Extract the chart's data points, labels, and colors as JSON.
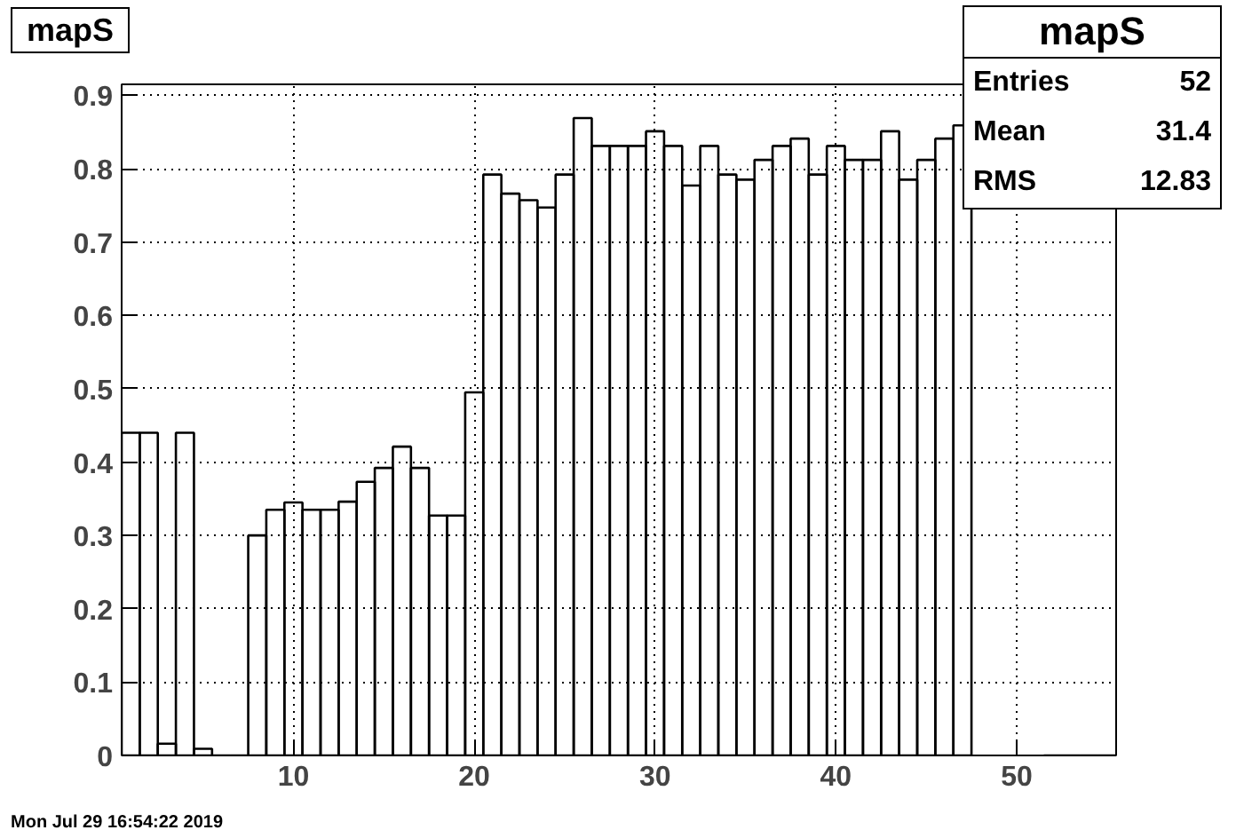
{
  "chart_data": {
    "type": "histogram",
    "title": "mapS",
    "bins": [
      0.5,
      1.5,
      2.5,
      3.5,
      4.5,
      5.5,
      6.5,
      7.5,
      8.5,
      9.5,
      10.5,
      11.5,
      12.5,
      13.5,
      14.5,
      15.5,
      16.5,
      17.5,
      18.5,
      19.5,
      20.5,
      21.5,
      22.5,
      23.5,
      24.5,
      25.5,
      26.5,
      27.5,
      28.5,
      29.5,
      30.5,
      31.5,
      32.5,
      33.5,
      34.5,
      35.5,
      36.5,
      37.5,
      38.5,
      39.5,
      40.5,
      41.5,
      42.5,
      43.5,
      44.5,
      45.5,
      46.5,
      47.5,
      48.5,
      49.5,
      50.5,
      51.5,
      52.5,
      53.5,
      54.5,
      55.5
    ],
    "values": [
      0.44,
      0.44,
      0.016,
      0.44,
      0.009,
      0,
      0,
      0.3,
      0.335,
      0.345,
      0.335,
      0.335,
      0.346,
      0.373,
      0.392,
      0.421,
      0.392,
      0.327,
      0.327,
      0.495,
      0.792,
      0.766,
      0.757,
      0.747,
      0.792,
      0.869,
      0.831,
      0.831,
      0.831,
      0.851,
      0.831,
      0.777,
      0.831,
      0.792,
      0.785,
      0.812,
      0.831,
      0.841,
      0.792,
      0.831,
      0.812,
      0.812,
      0.851,
      0.785,
      0.812,
      0.841,
      0.859,
      null,
      null,
      null,
      null,
      0,
      0,
      0,
      0
    ],
    "color": "#000000",
    "xlim": [
      0.5,
      55.5
    ],
    "xticks": [
      10,
      20,
      30,
      40,
      50
    ],
    "ylim": [
      0,
      0.915
    ],
    "yticks": [
      0,
      0.1,
      0.2,
      0.3,
      0.4,
      0.5,
      0.6,
      0.7,
      0.8,
      0.9
    ],
    "grid": true,
    "annotations": [
      "mapS",
      "Entries",
      "52",
      "Mean",
      "31.4",
      "RMS",
      "12.83",
      "Mon Jul 29 16:54:22 2019"
    ]
  }
}
